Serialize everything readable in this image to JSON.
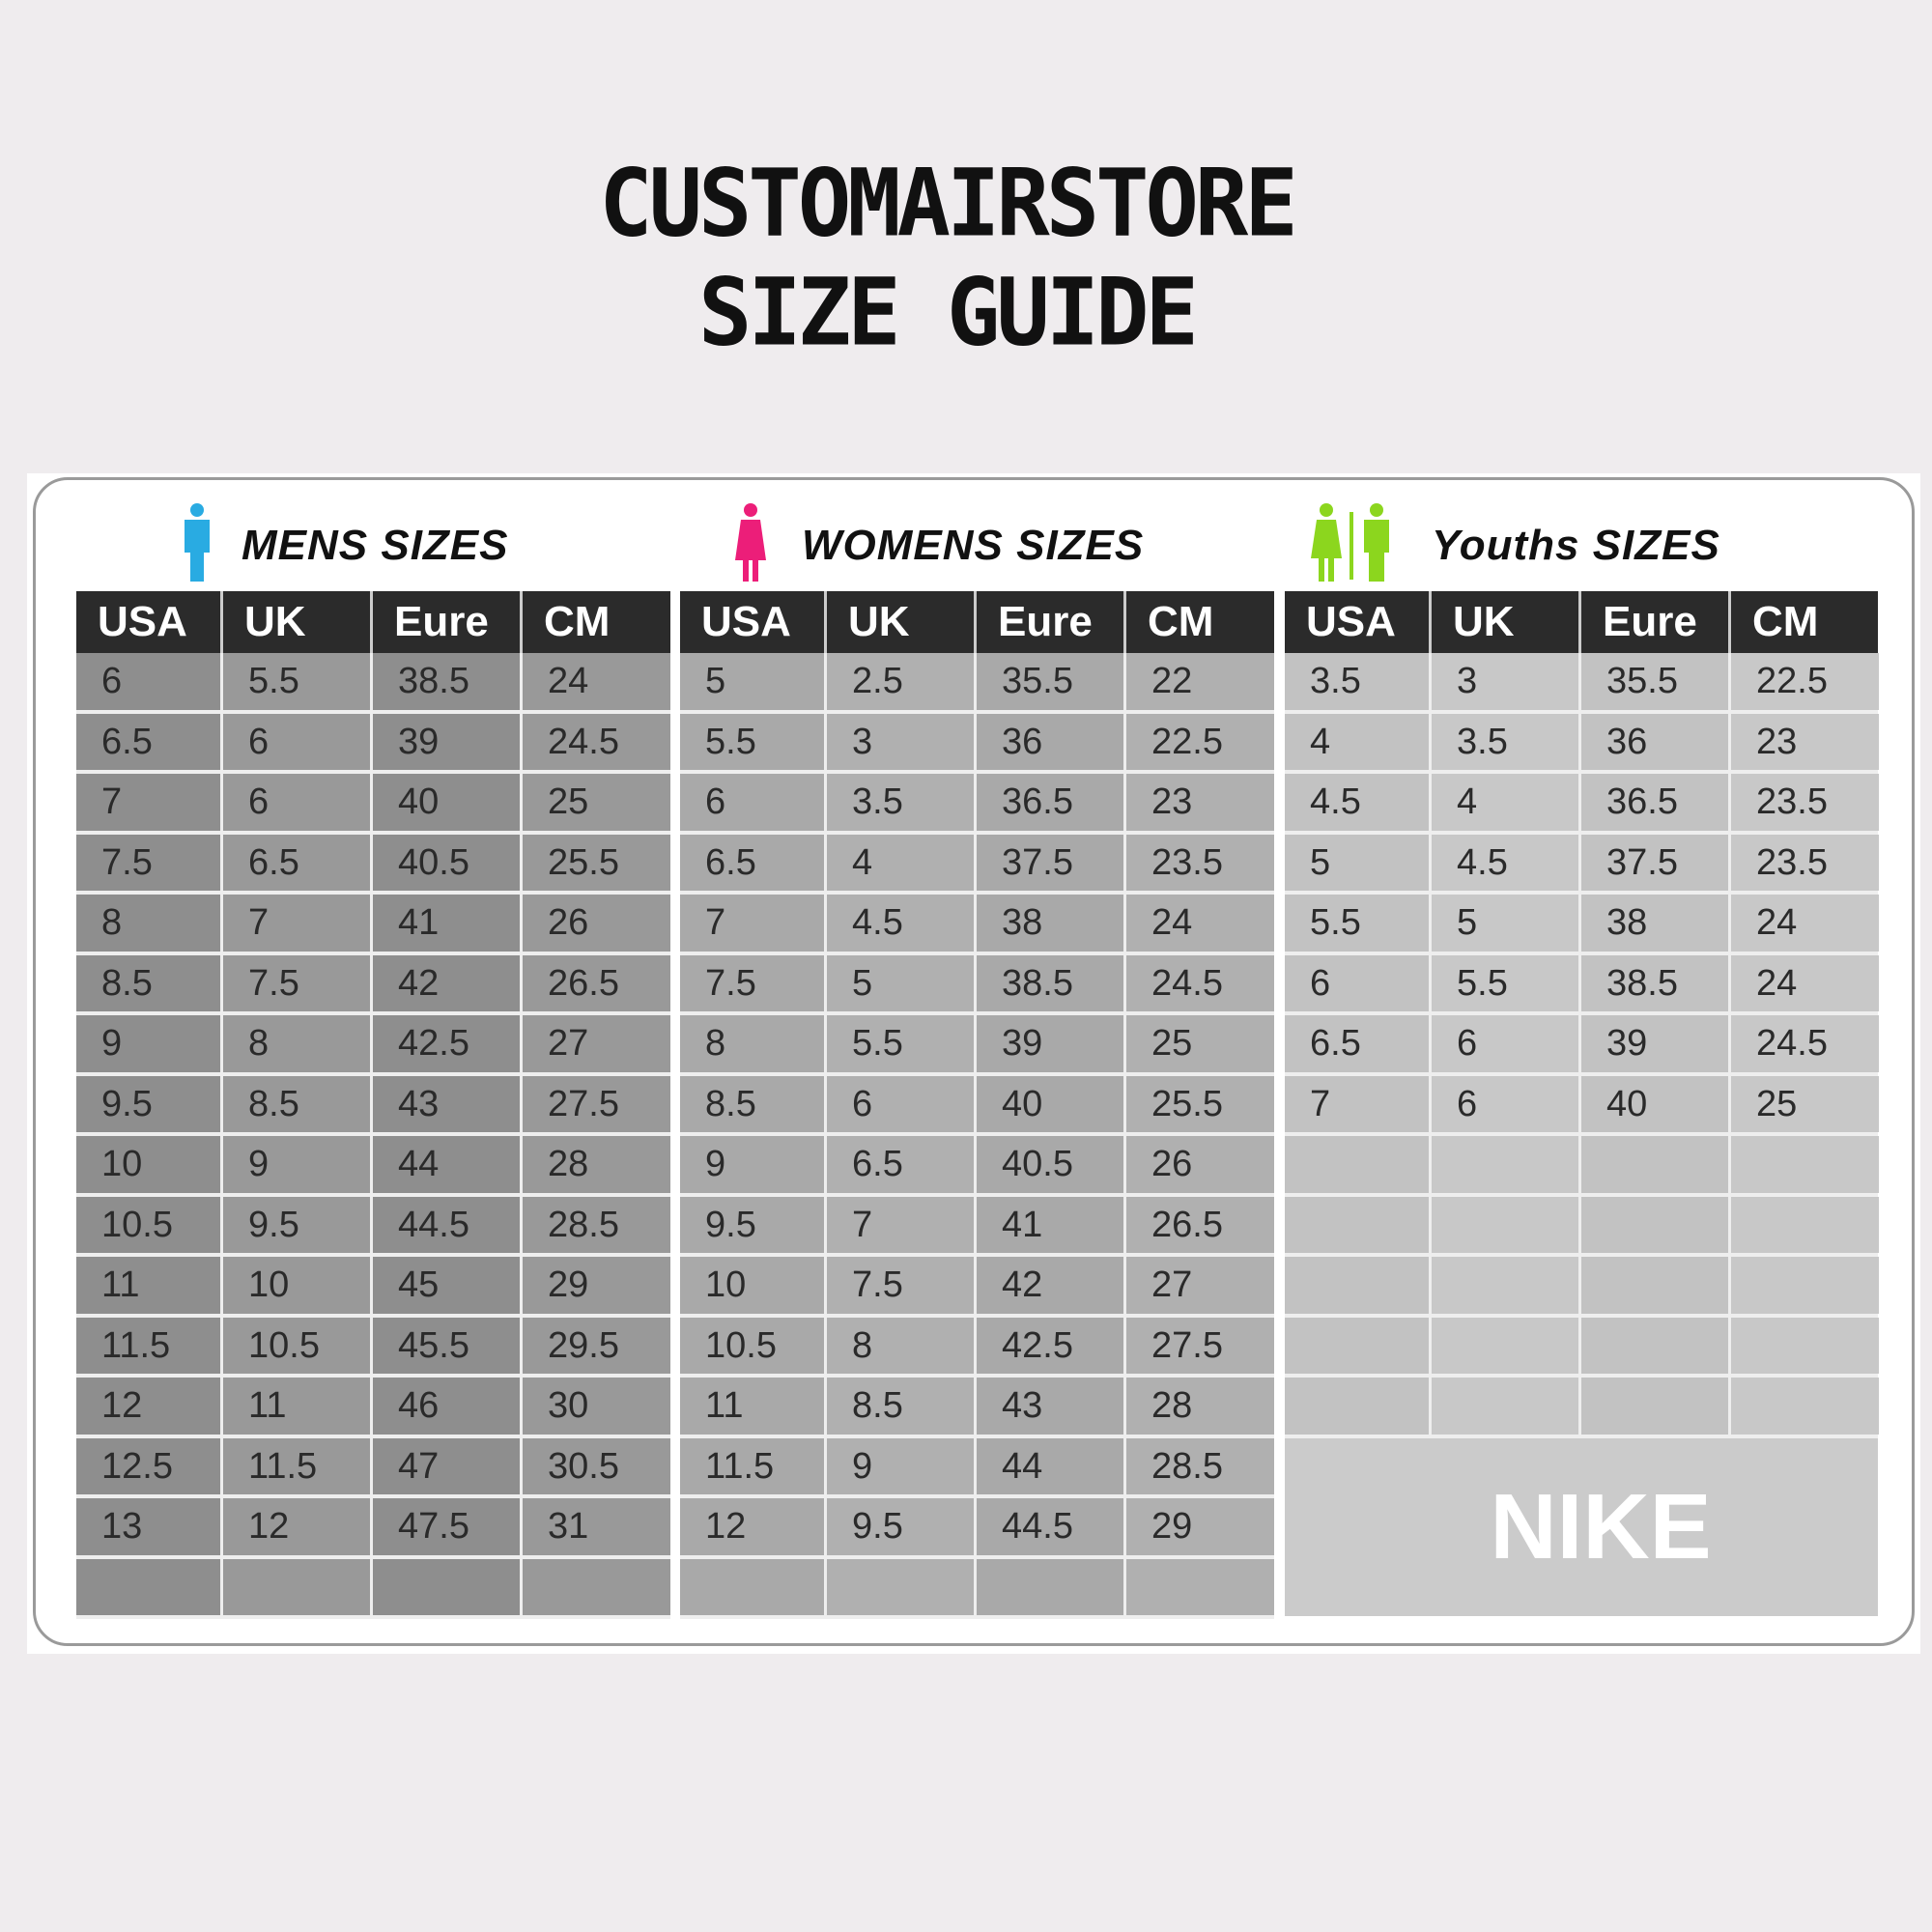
{
  "title": {
    "line1": "CUSTOMAIRSTORE",
    "line2": "SIZE GUIDE"
  },
  "colors": {
    "background": "#efecee",
    "header": "#2b2b2b",
    "mens_icon": "#29abe2",
    "womens_icon": "#ec1e79",
    "youths_icon": "#8cd61e"
  },
  "columns": [
    "USA",
    "UK",
    "Eure",
    "CM"
  ],
  "sections": {
    "mens": {
      "heading": "MENS  SIZES",
      "icon": "man-icon",
      "rows": [
        [
          "6",
          "5.5",
          "38.5",
          "24"
        ],
        [
          "6.5",
          "6",
          "39",
          "24.5"
        ],
        [
          "7",
          "6",
          "40",
          "25"
        ],
        [
          "7.5",
          "6.5",
          "40.5",
          "25.5"
        ],
        [
          "8",
          "7",
          "41",
          "26"
        ],
        [
          "8.5",
          "7.5",
          "42",
          "26.5"
        ],
        [
          "9",
          "8",
          "42.5",
          "27"
        ],
        [
          "9.5",
          "8.5",
          "43",
          "27.5"
        ],
        [
          "10",
          "9",
          "44",
          "28"
        ],
        [
          "10.5",
          "9.5",
          "44.5",
          "28.5"
        ],
        [
          "11",
          "10",
          "45",
          "29"
        ],
        [
          "11.5",
          "10.5",
          "45.5",
          "29.5"
        ],
        [
          "12",
          "11",
          "46",
          "30"
        ],
        [
          "12.5",
          "11.5",
          "47",
          "30.5"
        ],
        [
          "13",
          "12",
          "47.5",
          "31"
        ],
        [
          "",
          "",
          "",
          ""
        ]
      ]
    },
    "womens": {
      "heading": "WOMENS  SIZES",
      "icon": "woman-icon",
      "rows": [
        [
          "5",
          "2.5",
          "35.5",
          "22"
        ],
        [
          "5.5",
          "3",
          "36",
          "22.5"
        ],
        [
          "6",
          "3.5",
          "36.5",
          "23"
        ],
        [
          "6.5",
          "4",
          "37.5",
          "23.5"
        ],
        [
          "7",
          "4.5",
          "38",
          "24"
        ],
        [
          "7.5",
          "5",
          "38.5",
          "24.5"
        ],
        [
          "8",
          "5.5",
          "39",
          "25"
        ],
        [
          "8.5",
          "6",
          "40",
          "25.5"
        ],
        [
          "9",
          "6.5",
          "40.5",
          "26"
        ],
        [
          "9.5",
          "7",
          "41",
          "26.5"
        ],
        [
          "10",
          "7.5",
          "42",
          "27"
        ],
        [
          "10.5",
          "8",
          "42.5",
          "27.5"
        ],
        [
          "11",
          "8.5",
          "43",
          "28"
        ],
        [
          "11.5",
          "9",
          "44",
          "28.5"
        ],
        [
          "12",
          "9.5",
          "44.5",
          "29"
        ],
        [
          "",
          "",
          "",
          ""
        ]
      ]
    },
    "youths": {
      "heading": "Youths  SIZES",
      "icon": "youth-couple-icon",
      "rows": [
        [
          "3.5",
          "3",
          "35.5",
          "22.5"
        ],
        [
          "4",
          "3.5",
          "36",
          "23"
        ],
        [
          "4.5",
          "4",
          "36.5",
          "23.5"
        ],
        [
          "5",
          "4.5",
          "37.5",
          "23.5"
        ],
        [
          "5.5",
          "5",
          "38",
          "24"
        ],
        [
          "6",
          "5.5",
          "38.5",
          "24"
        ],
        [
          "6.5",
          "6",
          "39",
          "24.5"
        ],
        [
          "7",
          "6",
          "40",
          "25"
        ],
        [
          "",
          "",
          "",
          ""
        ],
        [
          "",
          "",
          "",
          ""
        ],
        [
          "",
          "",
          "",
          ""
        ],
        [
          "",
          "",
          "",
          ""
        ],
        [
          "",
          "",
          "",
          ""
        ]
      ],
      "brand": "NIKE"
    }
  }
}
